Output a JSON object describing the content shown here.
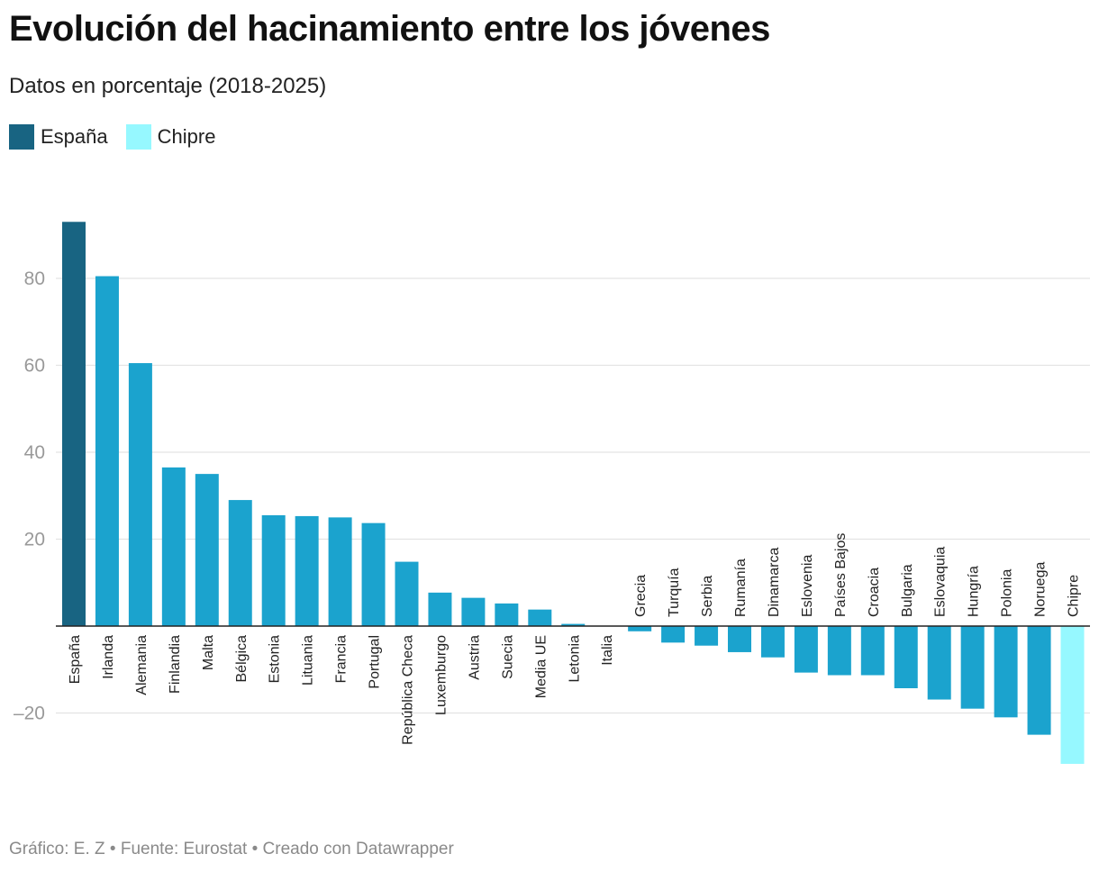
{
  "title": "Evolución del hacinamiento entre los jóvenes",
  "subtitle": "Datos en porcentaje (2018-2025)",
  "legend": [
    {
      "label": "España",
      "color": "#186482"
    },
    {
      "label": "Chipre",
      "color": "#96F8FF"
    }
  ],
  "footer": "Gráfico: E. Z • Fuente: Eurostat • Creado con Datawrapper",
  "chart_data": {
    "type": "bar",
    "categories": [
      "España",
      "Irlanda",
      "Alemania",
      "Finlandia",
      "Malta",
      "Bélgica",
      "Estonia",
      "Lituania",
      "Francia",
      "Portugal",
      "República Checa",
      "Luxemburgo",
      "Austria",
      "Suecia",
      "Media UE",
      "Letonia",
      "Italia",
      "Grecia",
      "Turquía",
      "Serbia",
      "Rumanía",
      "Dinamarca",
      "Eslovenia",
      "Países Bajos",
      "Croacia",
      "Bulgaria",
      "Eslovaquia",
      "Hungría",
      "Polonia",
      "Noruega",
      "Chipre"
    ],
    "values": [
      93,
      80.5,
      60.5,
      36.5,
      35,
      29,
      25.5,
      25.3,
      25,
      23.7,
      14.8,
      7.7,
      6.5,
      5.2,
      3.8,
      0.5,
      0,
      -1.2,
      -3.8,
      -4.5,
      -6,
      -7.2,
      -10.7,
      -11.3,
      -11.3,
      -14.3,
      -16.9,
      -19,
      -21,
      -25,
      -31.7
    ],
    "highlight": {
      "España": "#186482",
      "Chipre": "#96F8FF"
    },
    "default_color": "#1BA3CE",
    "yticks": [
      -20,
      20,
      40,
      60,
      80
    ],
    "ylim": [
      -35,
      95
    ],
    "grid": true,
    "legend_position": "top-left",
    "xlabel": "",
    "ylabel": ""
  }
}
